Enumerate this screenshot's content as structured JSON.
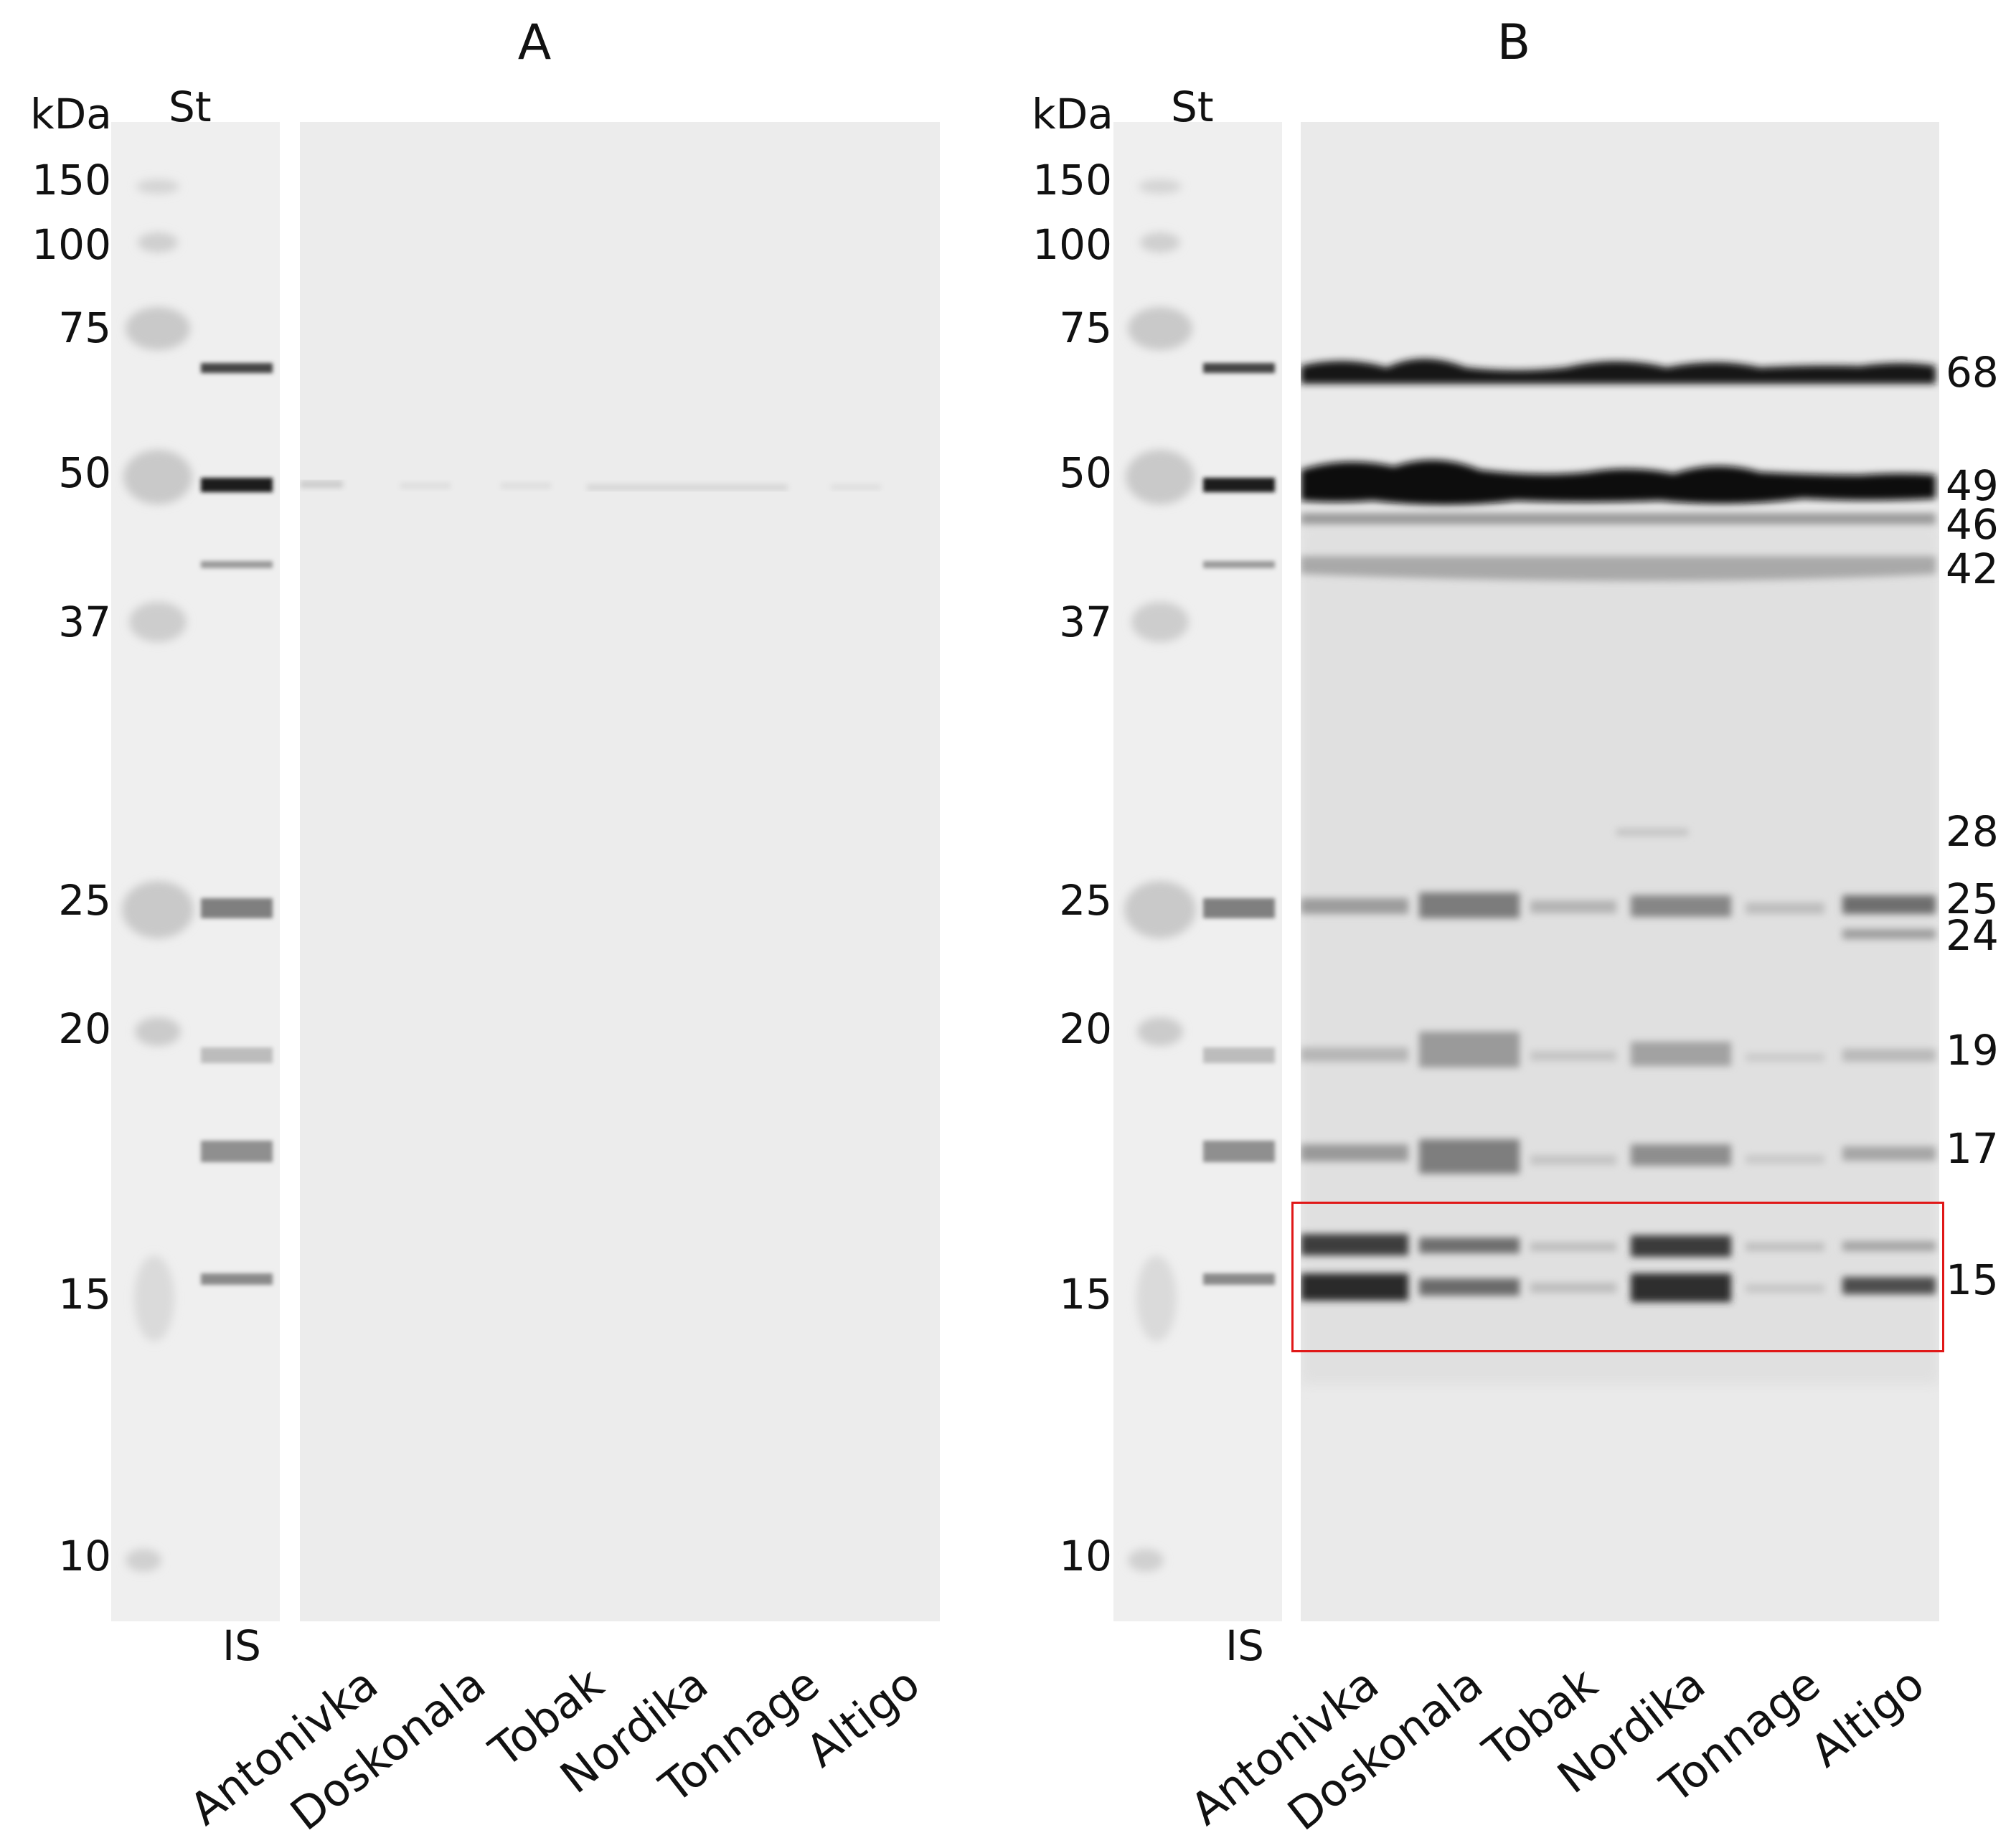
{
  "panels": {
    "a": {
      "title": "A",
      "marker_lane": "St",
      "unit": "kDa",
      "is_lane": "IS",
      "lanes": [
        "Antonivka",
        "Doskonala",
        "Tobak",
        "Nordika",
        "Tonnage",
        "Altigo"
      ]
    },
    "b": {
      "title": "B",
      "marker_lane": "St",
      "unit": "kDa",
      "is_lane": "IS",
      "lanes": [
        "Antonivka",
        "Doskonala",
        "Tobak",
        "Nordika",
        "Tonnage",
        "Altigo"
      ]
    }
  },
  "marker_sizes": [
    "150",
    "100",
    "75",
    "50",
    "37",
    "25",
    "20",
    "15",
    "10"
  ],
  "band_sizes_b": [
    "68",
    "49",
    "46",
    "42",
    "28",
    "25",
    "24",
    "19",
    "17",
    "15"
  ],
  "colors": {
    "highlight_box": "#e01818",
    "gel_background": "#eeeeee",
    "band": "#111111"
  }
}
